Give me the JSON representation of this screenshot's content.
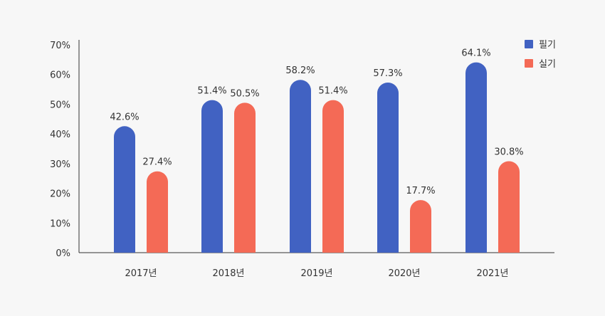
{
  "chart_data": {
    "type": "bar",
    "title": "",
    "xlabel": "",
    "ylabel": "",
    "categories": [
      "2017년",
      "2018년",
      "2019년",
      "2020년",
      "2021년"
    ],
    "series": [
      {
        "name": "필기",
        "color": "#4162c2",
        "values": [
          42.6,
          51.4,
          58.2,
          57.3,
          64.1
        ]
      },
      {
        "name": "실기",
        "color": "#f46a56",
        "values": [
          27.4,
          50.5,
          51.4,
          17.7,
          30.8
        ]
      }
    ],
    "value_labels": [
      [
        "42.6%",
        "51.4%",
        "58.2%",
        "57.3%",
        "64.1%"
      ],
      [
        "27.4%",
        "50.5%",
        "51.4%",
        "17.7%",
        "30.8%"
      ]
    ],
    "ylim": [
      0,
      70
    ],
    "yticks": [
      0,
      10,
      20,
      30,
      40,
      50,
      60,
      70
    ],
    "ytick_labels": [
      "0%",
      "10%",
      "20%",
      "30%",
      "40%",
      "50%",
      "60%",
      "70%"
    ],
    "grid": false,
    "legend_position": "top-right",
    "bar_style": "rounded-top"
  }
}
